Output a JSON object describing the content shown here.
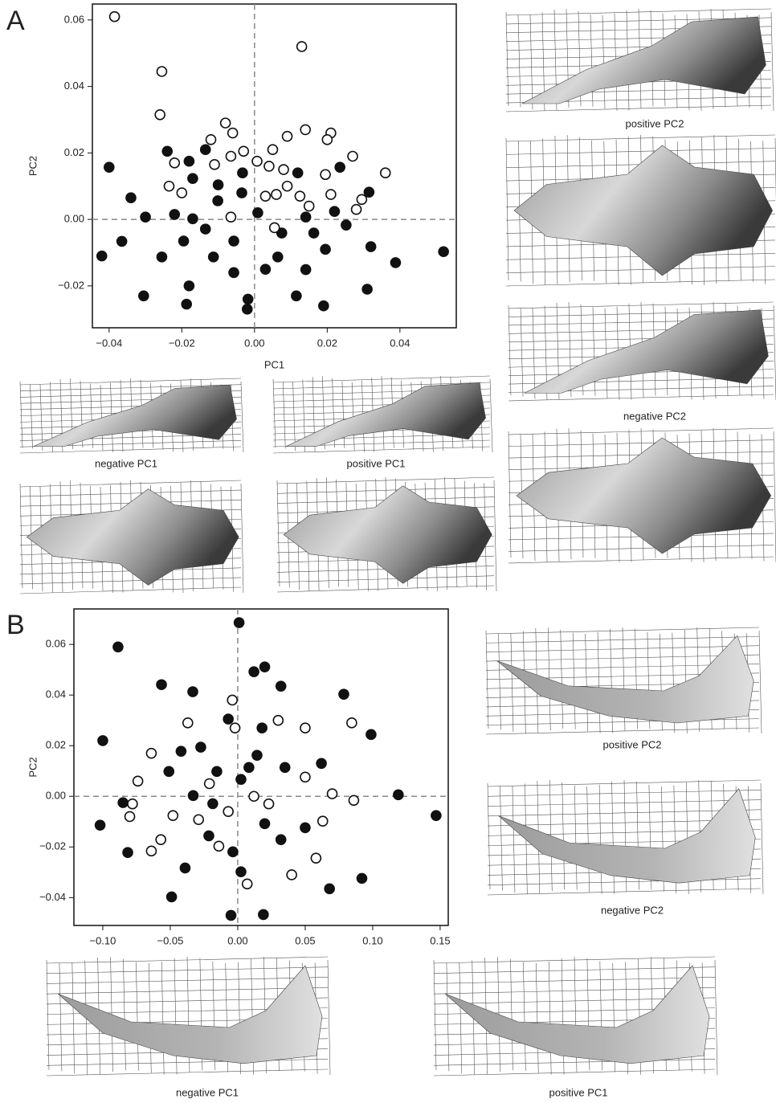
{
  "figure": {
    "panels": [
      "A",
      "B"
    ],
    "shape_captions": [
      "positive PC2",
      "negative PC2",
      "negative PC1",
      "positive PC1",
      "positive PC2",
      "negative PC2",
      "negative PC1",
      "positive PC1"
    ]
  },
  "chart_data": [
    {
      "type": "scatter",
      "x_label": "PC1",
      "y_label": "PC2",
      "xlim": [
        -0.0446,
        0.0555
      ],
      "ylim": [
        -0.0326,
        0.0648
      ],
      "xticks": [
        {
          "value": -0.04,
          "label": "−0.04"
        },
        {
          "value": -0.02,
          "label": "−0.02"
        },
        {
          "value": 0,
          "label": "0.00"
        },
        {
          "value": 0.02,
          "label": "0.02"
        },
        {
          "value": 0.04,
          "label": "0.04"
        }
      ],
      "yticks": [
        {
          "value": -0.02,
          "label": "−0.02"
        },
        {
          "value": 0,
          "label": "0.00"
        },
        {
          "value": 0.02,
          "label": "0.02"
        },
        {
          "value": 0.04,
          "label": "0.04"
        },
        {
          "value": 0.06,
          "label": "0.06"
        }
      ],
      "zero_lines": true,
      "series": [
        {
          "color": "#111111",
          "hollow": false,
          "x": [
            -0.04,
            -0.042,
            -0.0305,
            -0.0187,
            0.019,
            0.031,
            0.052,
            0.0388,
            -0.034,
            -0.03,
            -0.0365,
            0.0315,
            0.0235,
            0.032,
            -0.024,
            -0.018,
            -0.0135,
            -0.0033,
            -0.017,
            -0.022,
            -0.0195,
            -0.0113,
            -0.0057,
            -0.002,
            -0.0018,
            0.003,
            0.0115,
            0.0195,
            0.0252,
            0.0141,
            0.0075,
            -0.0135,
            -0.0057,
            0.0009,
            -0.0101,
            0.0119,
            0.0163,
            -0.0255,
            -0.018,
            0.0141,
            0.0064,
            -0.017,
            -0.0035,
            -0.01,
            0.022
          ],
          "y": [
            0.0157,
            -0.011,
            -0.023,
            -0.0255,
            -0.026,
            -0.021,
            -0.0097,
            -0.013,
            0.0065,
            0.0007,
            -0.0066,
            0.0082,
            0.0157,
            -0.0082,
            0.0205,
            0.0175,
            0.021,
            0.014,
            0.0123,
            0.0015,
            -0.0065,
            -0.0113,
            -0.016,
            -0.027,
            -0.024,
            -0.015,
            -0.023,
            -0.009,
            -0.0017,
            0.0007,
            -0.0041,
            -0.0029,
            -0.0065,
            0.002,
            0.0056,
            0.014,
            -0.0041,
            -0.0113,
            -0.02,
            -0.0151,
            -0.0113,
            0.0002,
            0.008,
            0.0104,
            0.0024
          ]
        },
        {
          "color": "#111111",
          "hollow": true,
          "x": [
            -0.0385,
            0.013,
            -0.0255,
            -0.026,
            -0.008,
            -0.006,
            0.014,
            0.009,
            0.021,
            -0.012,
            0.02,
            -0.003,
            0.005,
            0.027,
            0.036,
            -0.0065,
            -0.022,
            -0.011,
            0.0007,
            0.004,
            0.008,
            0.0195,
            -0.0235,
            0.009,
            0.006,
            0.0125,
            0.021,
            0.0295,
            0.028,
            -0.02,
            0.003,
            -0.0065,
            0.0055,
            0.015
          ],
          "y": [
            0.061,
            0.052,
            0.0445,
            0.0315,
            0.029,
            0.026,
            0.027,
            0.025,
            0.026,
            0.024,
            0.024,
            0.0205,
            0.021,
            0.019,
            0.014,
            0.019,
            0.017,
            0.0165,
            0.0175,
            0.016,
            0.015,
            0.0135,
            0.01,
            0.01,
            0.0075,
            0.007,
            0.0075,
            0.006,
            0.003,
            0.008,
            0.007,
            0.0007,
            -0.0025,
            0.004
          ]
        }
      ]
    },
    {
      "type": "scatter",
      "y_label": "PC2",
      "xlim": [
        -0.1214,
        0.156
      ],
      "ylim": [
        -0.051,
        0.074
      ],
      "xticks": [
        {
          "value": -0.1,
          "label": "−0.10"
        },
        {
          "value": -0.05,
          "label": "−0.05"
        },
        {
          "value": 0,
          "label": "0.00"
        },
        {
          "value": 0.05,
          "label": "0.05"
        },
        {
          "value": 0.1,
          "label": "0.10"
        },
        {
          "value": 0.15,
          "label": "0.15"
        }
      ],
      "yticks": [
        {
          "value": -0.04,
          "label": "−0.04"
        },
        {
          "value": -0.02,
          "label": "−0.02"
        },
        {
          "value": 0,
          "label": "0.00"
        },
        {
          "value": 0.02,
          "label": "0.02"
        },
        {
          "value": 0.04,
          "label": "0.04"
        },
        {
          "value": 0.06,
          "label": "0.06"
        }
      ],
      "zero_lines": true,
      "series": [
        {
          "color": "#111111",
          "hollow": false,
          "x": [
            0.001,
            -0.0887,
            -0.102,
            -0.1,
            0.147,
            0.119,
            0.092,
            0.068,
            -0.005,
            0.019,
            -0.049,
            -0.0815,
            -0.085,
            -0.0565,
            -0.0333,
            0.012,
            0.02,
            0.032,
            0.0786,
            0.0988,
            -0.007,
            0.018,
            -0.0274,
            0.0143,
            0.035,
            -0.0155,
            0.0024,
            -0.033,
            0.02,
            -0.0214,
            0.032,
            -0.0036,
            0.05,
            -0.051,
            0.062,
            -0.039,
            0.0024,
            -0.0185,
            0.0083,
            -0.042
          ],
          "y": [
            0.0686,
            0.059,
            -0.0114,
            0.022,
            -0.0076,
            0.0006,
            -0.0324,
            -0.0365,
            -0.047,
            -0.0467,
            -0.0397,
            -0.0222,
            -0.0025,
            0.0441,
            0.0413,
            0.0492,
            0.0511,
            0.0435,
            0.0403,
            0.0244,
            0.0305,
            0.027,
            0.0194,
            0.0162,
            0.0114,
            0.0098,
            0.0067,
            0.0003,
            -0.0108,
            -0.0156,
            -0.0171,
            -0.0219,
            -0.0124,
            0.0098,
            0.013,
            -0.0283,
            -0.0298,
            -0.0029,
            0.0114,
            0.0178
          ]
        },
        {
          "color": "#111111",
          "hollow": true,
          "x": [
            -0.004,
            -0.002,
            0.03,
            -0.037,
            -0.064,
            -0.074,
            -0.078,
            -0.08,
            0.0845,
            0.05,
            0.05,
            0.07,
            0.086,
            0.063,
            0.058,
            0.04,
            0.007,
            -0.014,
            -0.064,
            0.012,
            -0.021,
            -0.007,
            0.023,
            -0.029,
            -0.048,
            -0.057
          ],
          "y": [
            0.038,
            0.027,
            0.03,
            0.029,
            0.017,
            0.006,
            -0.003,
            -0.008,
            0.029,
            0.027,
            0.0076,
            0.001,
            -0.0016,
            -0.0098,
            -0.0244,
            -0.031,
            -0.0346,
            -0.0197,
            -0.0216,
            0.0,
            0.005,
            -0.006,
            -0.003,
            -0.0092,
            -0.0076,
            -0.0171
          ]
        }
      ]
    }
  ]
}
